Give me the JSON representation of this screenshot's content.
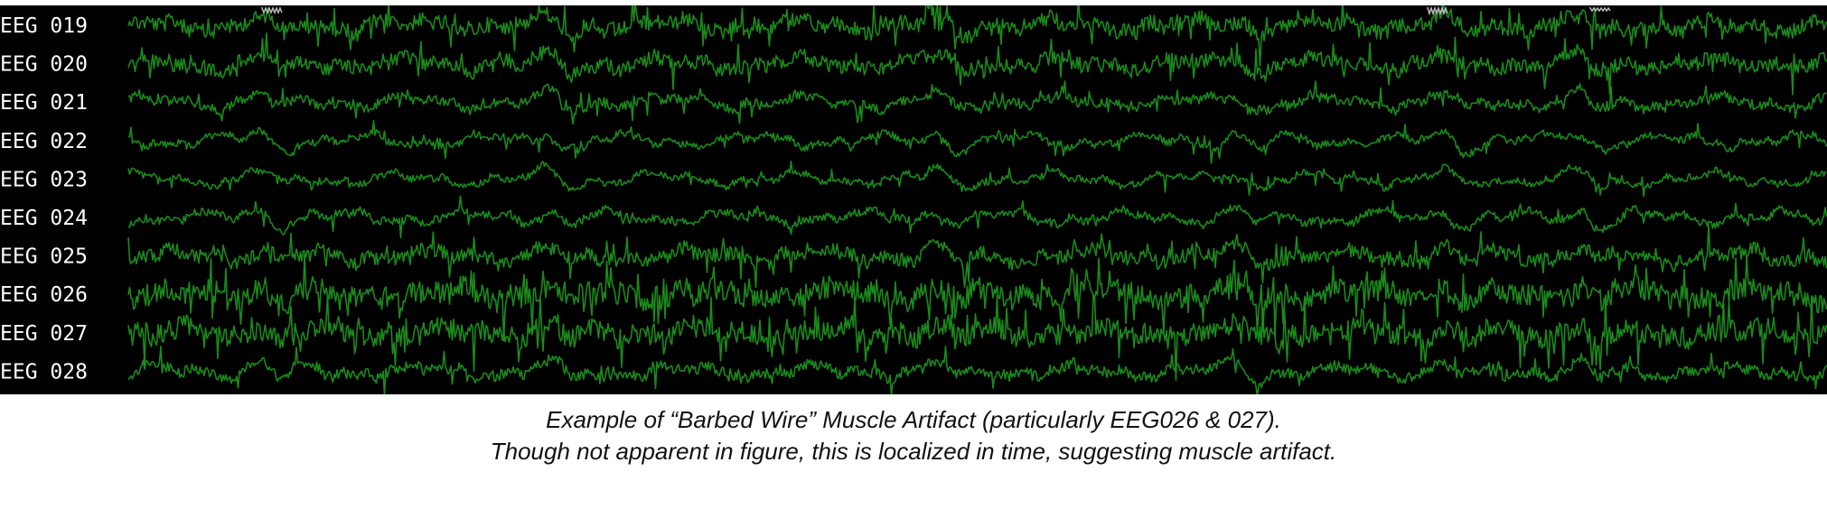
{
  "chart_data": {
    "type": "line",
    "title": "",
    "xlabel": "",
    "ylabel": "",
    "grid": false,
    "legend": "none",
    "background_color": "#000000",
    "trace_color": "#1a8a1a",
    "artifact_color": "#bbbbbb",
    "label_color": "#ffffff",
    "channels": [
      {
        "label": "EEG 019",
        "muscle_artifact": 0.6
      },
      {
        "label": "EEG 020",
        "muscle_artifact": 0.55
      },
      {
        "label": "EEG 021",
        "muscle_artifact": 0.3
      },
      {
        "label": "EEG 022",
        "muscle_artifact": 0.15
      },
      {
        "label": "EEG 023",
        "muscle_artifact": 0.12
      },
      {
        "label": "EEG 024",
        "muscle_artifact": 0.2
      },
      {
        "label": "EEG 025",
        "muscle_artifact": 0.55
      },
      {
        "label": "EEG 026",
        "muscle_artifact": 1.0
      },
      {
        "label": "EEG 027",
        "muscle_artifact": 0.95
      },
      {
        "label": "EEG 028",
        "muscle_artifact": 0.35
      }
    ]
  },
  "caption": {
    "line1": "Example of “Barbed Wire” Muscle Artifact (particularly EEG026 & 027).",
    "line2": "Though not apparent in figure, this is localized in time, suggesting muscle artifact."
  }
}
